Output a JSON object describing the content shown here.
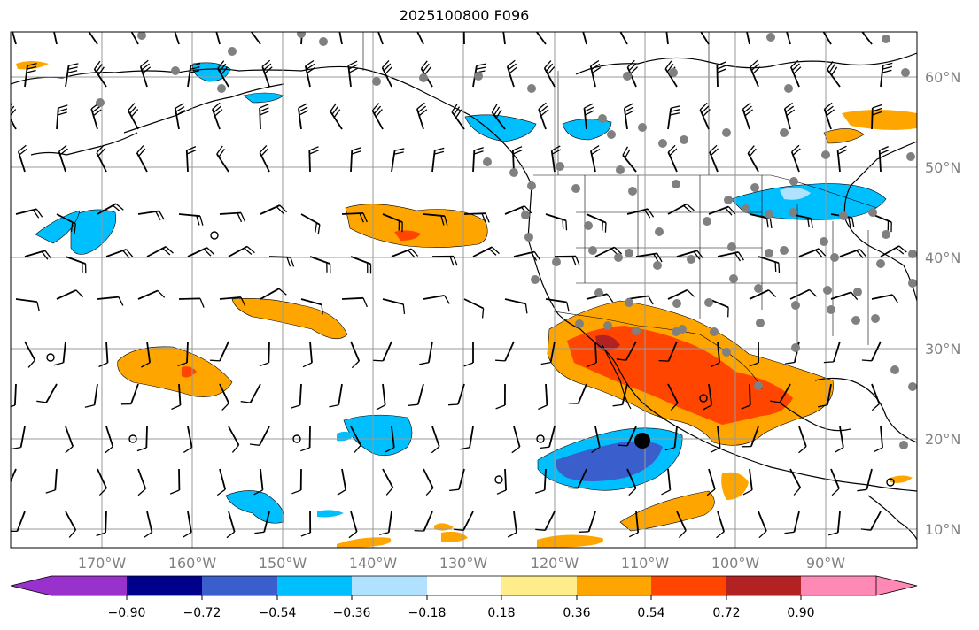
{
  "title": "2025100800 F096",
  "colors": {
    "grid": "#999999",
    "land_outline": "#000000",
    "ocean": "#ffffff",
    "station_dot": "#808080",
    "barb": "#000000"
  },
  "lon_labels": [
    "170°W",
    "160°W",
    "150°W",
    "140°W",
    "130°W",
    "120°W",
    "110°W",
    "100°W",
    "90°W"
  ],
  "lat_labels": [
    "60°N",
    "50°N",
    "40°N",
    "30°N",
    "20°N",
    "10°N"
  ],
  "colorbar": {
    "tick_labels": [
      "−0.90",
      "−0.72",
      "−0.54",
      "−0.36",
      "−0.18",
      "0.18",
      "0.36",
      "0.54",
      "0.72",
      "0.90"
    ],
    "colors": [
      "#9932cc",
      "#00008b",
      "#3a5fcd",
      "#00bfff",
      "#b0e2ff",
      "#ffffff",
      "#ffec8b",
      "#ffa500",
      "#ff4500",
      "#b22222",
      "#ff89b5"
    ]
  },
  "legend_icons": {
    "large_dot": "filled-circle-icon",
    "station": "station-dot-icon",
    "calm": "calm-circle-icon"
  }
}
